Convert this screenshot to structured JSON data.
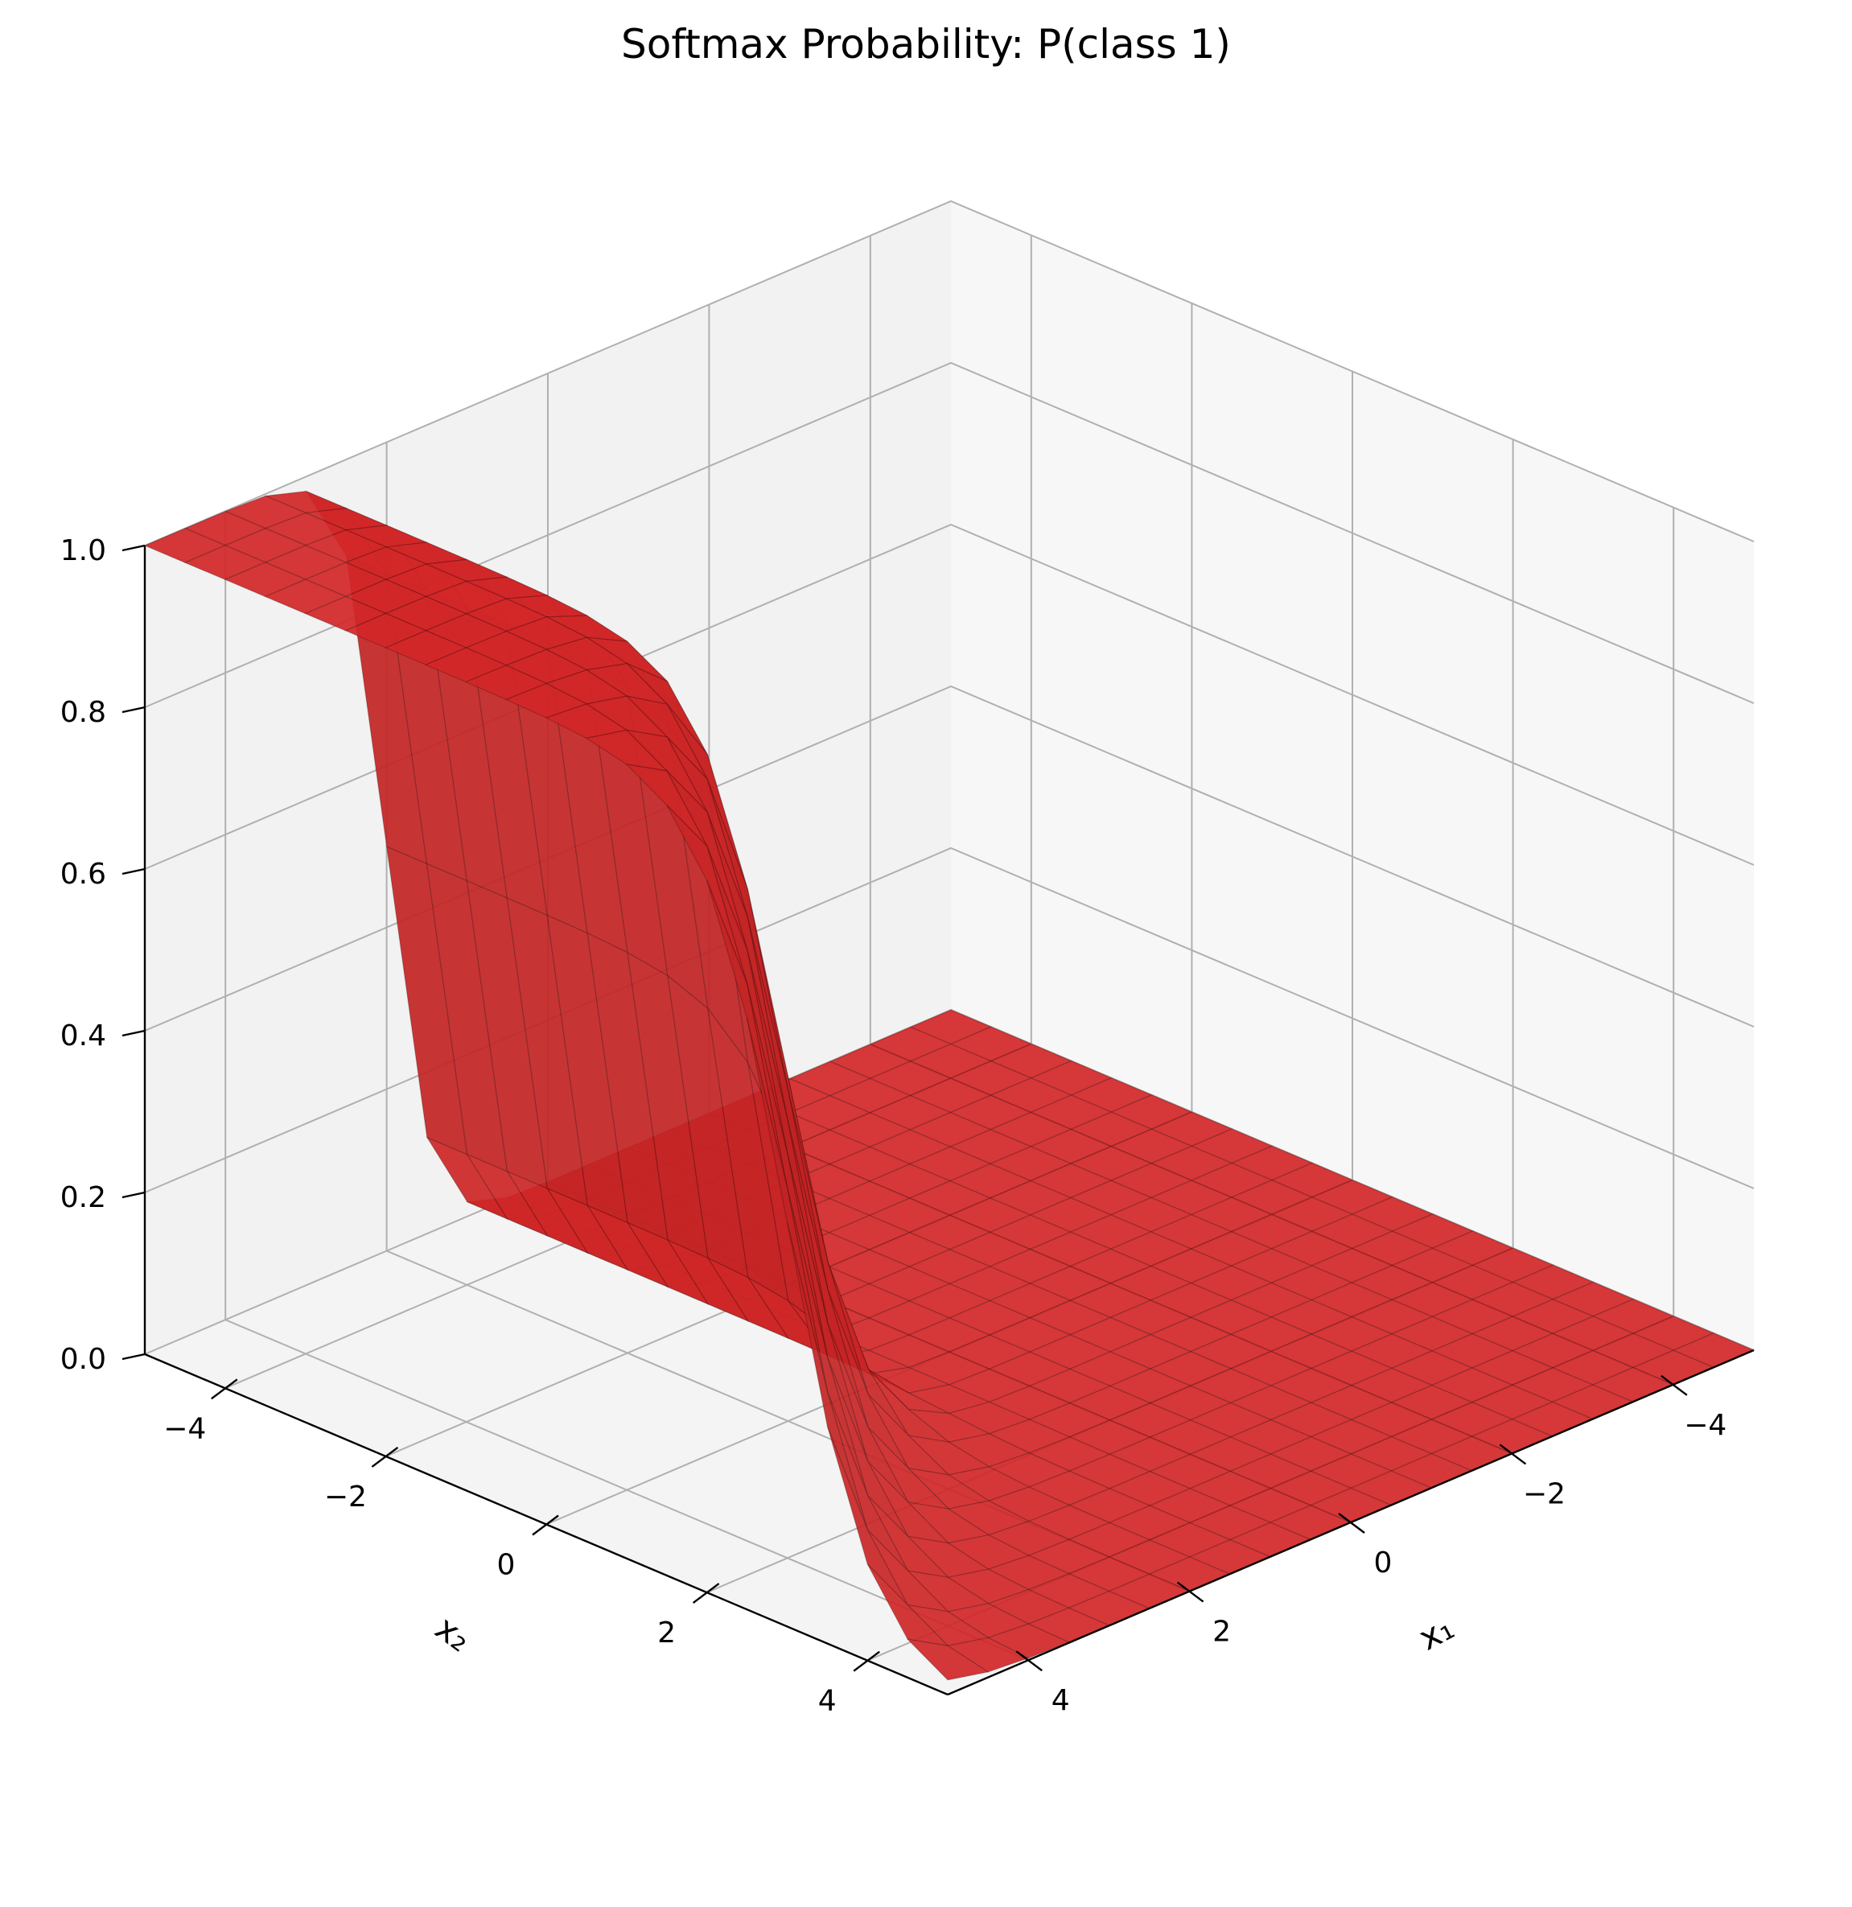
{
  "chart_data": {
    "type": "surface3d",
    "title": "Softmax Probability: P(class 1)",
    "xlabel": "x₁",
    "ylabel": "x₂",
    "zlabel": "",
    "x_range": [
      -5,
      5
    ],
    "y_range": [
      -5,
      5
    ],
    "zlim": [
      0,
      1
    ],
    "x_ticks": [
      "−4",
      "−2",
      "0",
      "2",
      "4"
    ],
    "y_ticks": [
      "−4",
      "−2",
      "0",
      "2",
      "4"
    ],
    "z_ticks": [
      "0.0",
      "0.2",
      "0.4",
      "0.6",
      "0.8",
      "1.0"
    ],
    "surface": {
      "formula": "P(class 1) = 1 / (1 + exp(-2x₁ + 2x₂ + 4) + exp(-4x₁ + 8))",
      "x_grid": [
        -5,
        -4.5,
        -4,
        -3.5,
        -3,
        -2.5,
        -2,
        -1.5,
        -1,
        -0.5,
        0,
        0.5,
        1,
        1.5,
        2,
        2.5,
        3,
        3.5,
        4,
        4.5,
        5
      ],
      "y_grid": [
        -5,
        -4.5,
        -4,
        -3.5,
        -3,
        -2.5,
        -2,
        -1.5,
        -1,
        -0.5,
        0,
        0.5,
        1,
        1.5,
        2,
        2.5,
        3,
        3.5,
        4,
        4.5,
        5
      ],
      "color": "#d62728",
      "edge_color": "#000000"
    },
    "grid": true,
    "pane_colors": [
      "#f2f2f2",
      "#f7f7f7",
      "#f4f4f4"
    ]
  }
}
